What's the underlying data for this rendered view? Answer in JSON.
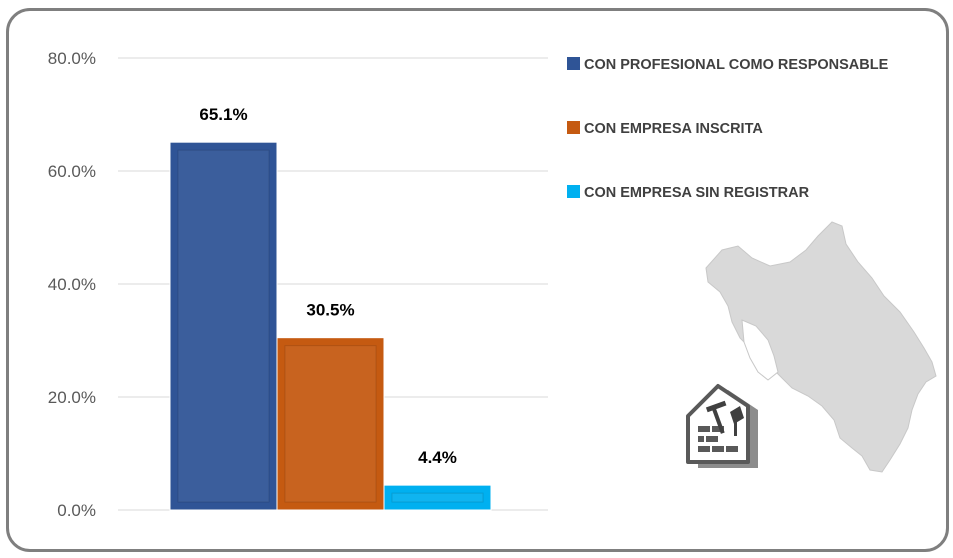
{
  "chart_data": {
    "type": "bar",
    "title": "",
    "xlabel": "",
    "ylabel": "",
    "categories": [
      "CON PROFESIONAL COMO RESPONSABLE",
      "CON EMPRESA INSCRITA",
      "CON EMPRESA SIN REGISTRAR"
    ],
    "values": [
      65.1,
      30.5,
      4.4
    ],
    "data_labels": [
      "65.1%",
      "30.5%",
      "4.4%"
    ],
    "colors": [
      "#2f5496",
      "#c55a11",
      "#00b0f0"
    ],
    "ylim": [
      0,
      80
    ],
    "yticks": [
      {
        "value": 0,
        "label": "0.0%"
      },
      {
        "value": 20,
        "label": "20.0%"
      },
      {
        "value": 40,
        "label": "40.0%"
      },
      {
        "value": 60,
        "label": "60.0%"
      },
      {
        "value": 80,
        "label": "80.0%"
      }
    ],
    "grid": true,
    "legend_placement": "top-right",
    "decorations": [
      "costa-rica-map",
      "construction-house-icon"
    ]
  }
}
